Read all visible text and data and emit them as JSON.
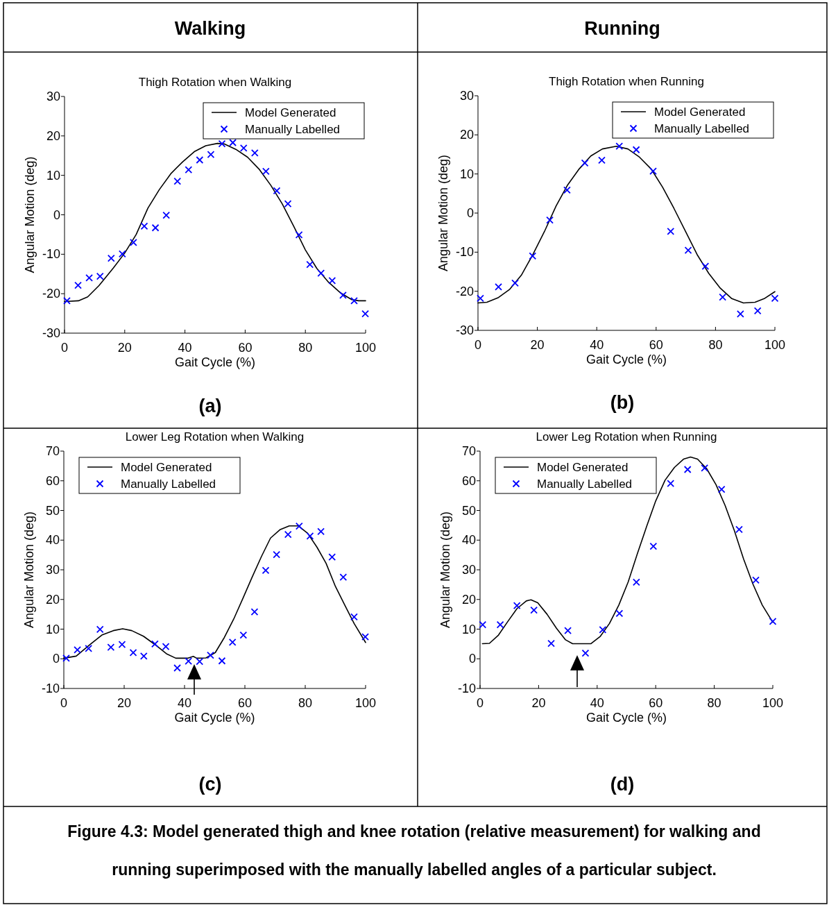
{
  "chart_data": [
    {
      "type": "line",
      "title": "Thigh Rotation when Walking",
      "xlabel": "Gait Cycle (%)",
      "ylabel": "Angular Motion (deg)",
      "xlim": [
        0,
        100
      ],
      "xticks": [
        0,
        20,
        40,
        60,
        80,
        100
      ],
      "ylim": [
        -30,
        30
      ],
      "yticks": [
        -30,
        -20,
        -10,
        0,
        10,
        20,
        30
      ],
      "legend": "top right",
      "grid": false,
      "annotations": [
        "Walking",
        "(a)"
      ],
      "series": [
        {
          "name": "Model Generated",
          "type": "line",
          "color": "#000000",
          "line_style": "solid",
          "x": [
            0,
            4.6,
            7.7,
            11.5,
            16.2,
            20,
            23.8,
            27.7,
            31.5,
            35.4,
            39.2,
            43.1,
            46.9,
            50.8,
            53,
            56.9,
            60.8,
            64.6,
            68.5,
            72.3,
            76.2,
            80,
            83.8,
            87.7,
            91.5,
            95.4,
            97.7,
            100
          ],
          "values": [
            -22,
            -21.8,
            -20.8,
            -17.9,
            -13.5,
            -9.7,
            -5,
            1.7,
            6.4,
            10.5,
            13.4,
            16,
            17.5,
            18.1,
            18,
            16.6,
            14.6,
            11.6,
            7.5,
            2.8,
            -3,
            -8.9,
            -13.6,
            -17.1,
            -19.7,
            -21.5,
            -21.8,
            -21.8
          ]
        },
        {
          "name": "Manually Labelled",
          "type": "scatter",
          "marker": "cross",
          "color": "#0000ff",
          "x": [
            0.8,
            4.5,
            8.2,
            11.8,
            15.5,
            19.2,
            22.9,
            26.5,
            30.2,
            33.8,
            37.5,
            41.2,
            44.9,
            48.6,
            52.3,
            55.9,
            59.5,
            63.2,
            66.9,
            70.5,
            74.2,
            77.9,
            81.5,
            85.2,
            88.9,
            92.5,
            96.2,
            99.9
          ],
          "values": [
            -21.8,
            -17.9,
            -16,
            -15.6,
            -11,
            -9.9,
            -7,
            -2.9,
            -3.3,
            -0.1,
            8.5,
            11.4,
            13.9,
            15.3,
            18,
            18.3,
            16.9,
            15.7,
            11,
            6.1,
            2.8,
            -5.1,
            -12.6,
            -14.8,
            -16.7,
            -20.4,
            -21.8,
            -25.1
          ]
        }
      ]
    },
    {
      "type": "line",
      "title": "Thigh Rotation when Running",
      "xlabel": "Gait Cycle (%)",
      "ylabel": "Angular Motion (deg)",
      "xlim": [
        0,
        100
      ],
      "xticks": [
        0,
        20,
        40,
        60,
        80,
        100
      ],
      "ylim": [
        -30,
        30
      ],
      "yticks": [
        -30,
        -20,
        -10,
        0,
        10,
        20,
        30
      ],
      "legend": "top right",
      "grid": false,
      "annotations": [
        "Running",
        "(b)"
      ],
      "series": [
        {
          "name": "Model Generated",
          "type": "line",
          "color": "#000000",
          "line_style": "solid",
          "x": [
            0,
            3,
            6.9,
            10.7,
            14.6,
            18.5,
            22.4,
            26.3,
            30.2,
            34.1,
            38,
            41.9,
            46.6,
            50.5,
            54.4,
            58.3,
            62.2,
            66,
            69.9,
            73.8,
            77.7,
            81.6,
            85.5,
            89.4,
            93.3,
            96.4,
            100
          ],
          "values": [
            -23,
            -22.8,
            -21.6,
            -19.5,
            -15.9,
            -10.6,
            -4.7,
            1.8,
            7.2,
            11.3,
            14.6,
            16.4,
            17.1,
            16.4,
            14.3,
            11.3,
            6.6,
            1.2,
            -4.7,
            -10.6,
            -15.4,
            -19.2,
            -21.9,
            -23,
            -22.8,
            -21.9,
            -20.1
          ]
        },
        {
          "name": "Manually Labelled",
          "type": "scatter",
          "marker": "cross",
          "color": "#0000ff",
          "x": [
            0.8,
            6.9,
            12.5,
            18.4,
            24.2,
            30,
            36,
            41.7,
            47.6,
            53.3,
            59,
            64.9,
            70.8,
            76.6,
            82.4,
            88.4,
            94.2,
            100
          ],
          "values": [
            -21.8,
            -18.9,
            -17.9,
            -11,
            -1.8,
            5.9,
            12.8,
            13.5,
            17.1,
            16.2,
            10.7,
            -4.7,
            -9.5,
            -13.6,
            -21.5,
            -25.8,
            -25,
            -21.8
          ]
        }
      ]
    },
    {
      "type": "line",
      "title": "Lower Leg Rotation when Walking",
      "xlabel": "Gait Cycle (%)",
      "ylabel": "Angular Motion (deg)",
      "xlim": [
        0,
        100
      ],
      "xticks": [
        0,
        20,
        40,
        60,
        80,
        100
      ],
      "ylim": [
        -10,
        70
      ],
      "yticks": [
        -10,
        0,
        10,
        20,
        30,
        40,
        50,
        60,
        70
      ],
      "legend": "top left",
      "grid": false,
      "annotations": [
        "(c)"
      ],
      "series": [
        {
          "name": "Model Generated",
          "type": "line",
          "color": "#000000",
          "line_style": "solid",
          "x": [
            0,
            4.1,
            8.7,
            12.6,
            16.4,
            19.5,
            22.5,
            26.4,
            30.2,
            34,
            37.1,
            41,
            42.9,
            44,
            47.1,
            50.2,
            53.2,
            56.3,
            59.4,
            62.4,
            65.5,
            68.5,
            71.6,
            74.7,
            77.7,
            80.8,
            83.9,
            86.9,
            90,
            93.1,
            96.2,
            100
          ],
          "values": [
            0.2,
            0.9,
            4.8,
            8,
            9.5,
            10.1,
            9.5,
            7.6,
            4.8,
            1.7,
            0.2,
            0.2,
            0.8,
            0.2,
            0.3,
            2.1,
            7.2,
            13.4,
            20.5,
            27.5,
            34.5,
            40.7,
            43.5,
            44.8,
            44.8,
            42.3,
            37.6,
            32.2,
            24.4,
            18.1,
            11.9,
            5.5
          ]
        },
        {
          "name": "Manually Labelled",
          "type": "scatter",
          "marker": "cross",
          "color": "#0000ff",
          "x": [
            0.8,
            4.5,
            8.2,
            12,
            15.6,
            19.3,
            23,
            26.5,
            30.2,
            33.8,
            37.6,
            41.3,
            45,
            48.6,
            52.4,
            55.9,
            59.5,
            63.2,
            66.9,
            70.5,
            74.3,
            78,
            81.6,
            85.2,
            88.9,
            92.6,
            96.2,
            99.9
          ],
          "values": [
            0.2,
            3,
            3.5,
            9.9,
            3.9,
            4.8,
            2.1,
            0.9,
            5,
            4.1,
            -3.1,
            -0.8,
            -0.9,
            1.2,
            -0.7,
            5.6,
            8,
            15.8,
            29.8,
            35.1,
            41.9,
            44.7,
            41.4,
            42.9,
            34.3,
            27.5,
            14.1,
            7.4
          ]
        }
      ]
    },
    {
      "type": "line",
      "title": "Lower Leg Rotation when Running",
      "xlabel": "Gait Cycle (%)",
      "ylabel": "Angular Motion (deg)",
      "xlim": [
        0,
        100
      ],
      "xticks": [
        0,
        20,
        40,
        60,
        80,
        100
      ],
      "ylim": [
        -10,
        70
      ],
      "yticks": [
        -10,
        0,
        10,
        20,
        30,
        40,
        50,
        60,
        70
      ],
      "legend": "top left",
      "grid": false,
      "annotations": [
        "(d)",
        "Figure 4.3: Model generated thigh and knee rotation (relative measurement) for walking and running superimposed with the manually labelled angles of a particular subject."
      ],
      "series": [
        {
          "name": "Model Generated",
          "type": "line",
          "color": "#000000",
          "line_style": "solid",
          "x": [
            0.8,
            3.2,
            6.3,
            9.5,
            12.6,
            15.8,
            17.4,
            19.7,
            22.9,
            26.1,
            29.2,
            31.6,
            34.8,
            37.9,
            41.1,
            44.2,
            47.4,
            50.6,
            53.7,
            56.9,
            60,
            63.2,
            66.4,
            69.5,
            71.9,
            74.3,
            77.4,
            80.6,
            83.7,
            86.9,
            90,
            93.2,
            96.4,
            100
          ],
          "values": [
            5.1,
            5.2,
            8,
            12.6,
            16.9,
            19.5,
            19.9,
            18.9,
            15,
            10.3,
            6.4,
            5.1,
            5.1,
            5.1,
            7.6,
            11.9,
            18.1,
            25.9,
            35.3,
            44.6,
            53.2,
            60.2,
            64.5,
            67.3,
            68,
            67.3,
            64.1,
            58.7,
            51.7,
            43.1,
            33.7,
            25.2,
            18.1,
            12.3
          ]
        },
        {
          "name": "Manually Labelled",
          "type": "scatter",
          "marker": "cross",
          "color": "#0000ff",
          "x": [
            0.9,
            6.9,
            12.6,
            18.4,
            24.3,
            30,
            36,
            41.9,
            47.6,
            53.4,
            59.2,
            65.1,
            70.9,
            76.7,
            82.5,
            88.5,
            94.2,
            100
          ],
          "values": [
            11.5,
            11.5,
            17.9,
            16.4,
            5.2,
            9.5,
            1.9,
            9.8,
            15.3,
            25.8,
            37.9,
            59.1,
            63.8,
            64.3,
            57.1,
            43.6,
            26.5,
            12.6
          ]
        }
      ]
    }
  ]
}
